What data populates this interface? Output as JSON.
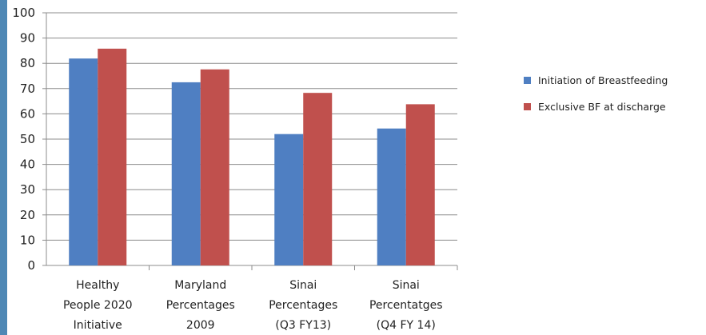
{
  "colors": {
    "accent_stripe": "#4f88b5",
    "series_1": "#4f7fc2",
    "series_2": "#c0504d",
    "gridline": "#8c8c8c"
  },
  "chart_data": {
    "type": "bar",
    "categories": [
      [
        "Healthy",
        "People 2020",
        "Initiative"
      ],
      [
        "Maryland",
        "Percentages",
        "2009"
      ],
      [
        "Sinai",
        "Percentages",
        "(Q3 FY13)"
      ],
      [
        "Sinai",
        "Percentatges",
        "(Q4 FY 14)"
      ]
    ],
    "series": [
      {
        "name": "Initiation of Breastfeeding",
        "values": [
          81.9,
          72.5,
          52.0,
          54.2
        ],
        "color": "#4f7fc2"
      },
      {
        "name": "Exclusive BF at discharge",
        "values": [
          85.8,
          77.6,
          68.3,
          63.8
        ],
        "color": "#c0504d"
      }
    ],
    "ylim": [
      0,
      100
    ],
    "yticks": [
      0,
      10,
      20,
      30,
      40,
      50,
      60,
      70,
      80,
      90,
      100
    ],
    "grid": true,
    "legend_position": "right"
  }
}
